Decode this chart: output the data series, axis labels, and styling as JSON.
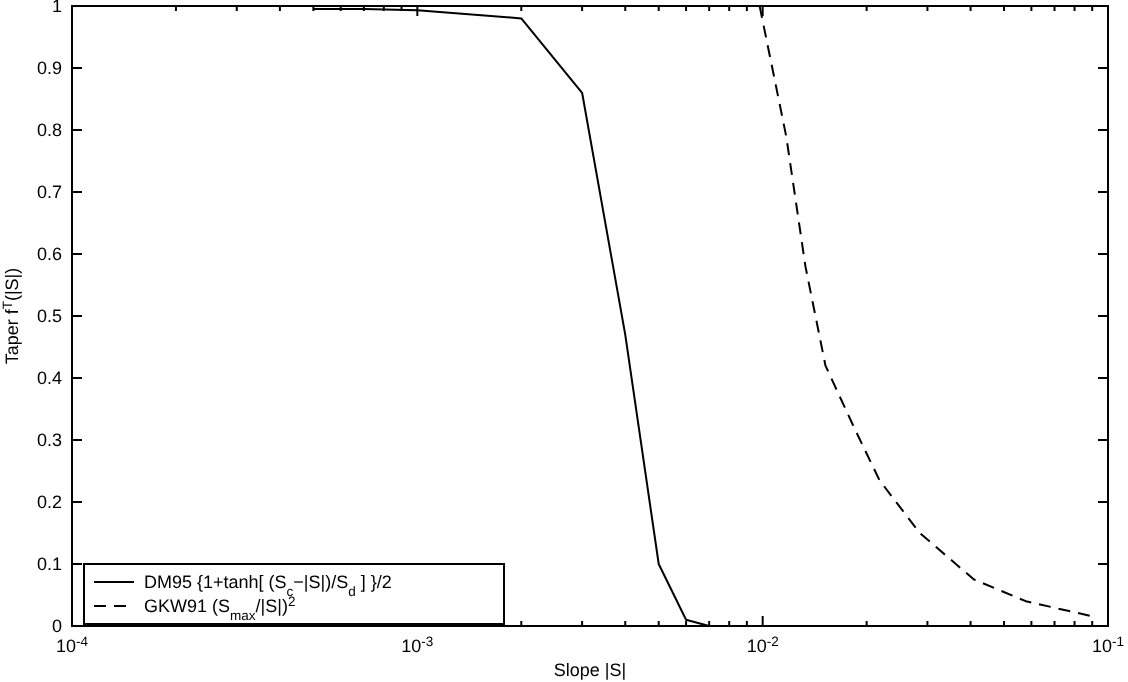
{
  "chart_data": {
    "type": "line",
    "xlabel": "Slope |S|",
    "ylabel": "Taper f$^{T}$(|S|)",
    "log": "x",
    "xlim": [
      0.0001,
      0.1
    ],
    "ylim": [
      0,
      1
    ],
    "xticks": [
      {
        "value": 0.0001,
        "label": "10$^{-4}$"
      },
      {
        "value": 0.0002,
        "label": null
      },
      {
        "value": 0.0003,
        "label": null
      },
      {
        "value": 0.0004,
        "label": null
      },
      {
        "value": 0.0005,
        "label": null
      },
      {
        "value": 0.0006,
        "label": null
      },
      {
        "value": 0.0007,
        "label": null
      },
      {
        "value": 0.0008,
        "label": null
      },
      {
        "value": 0.0009,
        "label": null
      },
      {
        "value": 0.001,
        "label": "10$^{-3}$"
      },
      {
        "value": 0.002,
        "label": null
      },
      {
        "value": 0.003,
        "label": null
      },
      {
        "value": 0.004,
        "label": null
      },
      {
        "value": 0.005,
        "label": null
      },
      {
        "value": 0.006,
        "label": null
      },
      {
        "value": 0.007,
        "label": null
      },
      {
        "value": 0.008,
        "label": null
      },
      {
        "value": 0.009,
        "label": null
      },
      {
        "value": 0.01,
        "label": "10$^{-2}$"
      },
      {
        "value": 0.02,
        "label": null
      },
      {
        "value": 0.03,
        "label": null
      },
      {
        "value": 0.04,
        "label": null
      },
      {
        "value": 0.05,
        "label": null
      },
      {
        "value": 0.06,
        "label": null
      },
      {
        "value": 0.07,
        "label": null
      },
      {
        "value": 0.08,
        "label": null
      },
      {
        "value": 0.09,
        "label": null
      },
      {
        "value": 0.1,
        "label": "10$^{-1}$"
      }
    ],
    "yticks": [
      0,
      0.1,
      0.2,
      0.3,
      0.4,
      0.5,
      0.6,
      0.7,
      0.8,
      0.9,
      1
    ],
    "grid": false,
    "legend": "bottom left",
    "series": [
      {
        "name": "DM95  {1+tanh[ (S$_{c}$−|S|)/S$_{d}$ ] }/2",
        "color": "#000000",
        "line_style": "solid",
        "x": [
          0.0005,
          0.0007,
          0.001,
          0.002,
          0.003,
          0.004,
          0.005,
          0.006,
          0.007
        ],
        "values": [
          0.995,
          0.995,
          0.993,
          0.98,
          0.86,
          0.47,
          0.1,
          0.01,
          0
        ]
      },
      {
        "name": "GKW91 (S$_{max}$/|S|)$^{2}$",
        "color": "#000000",
        "line_style": "dashed",
        "x": [
          0.0098,
          0.0117,
          0.0133,
          0.0152,
          0.0184,
          0.0218,
          0.0285,
          0.0409,
          0.0578,
          0.091
        ],
        "values": [
          1,
          0.79,
          0.58,
          0.42,
          0.32,
          0.235,
          0.15,
          0.075,
          0.04,
          0.015
        ]
      }
    ]
  }
}
